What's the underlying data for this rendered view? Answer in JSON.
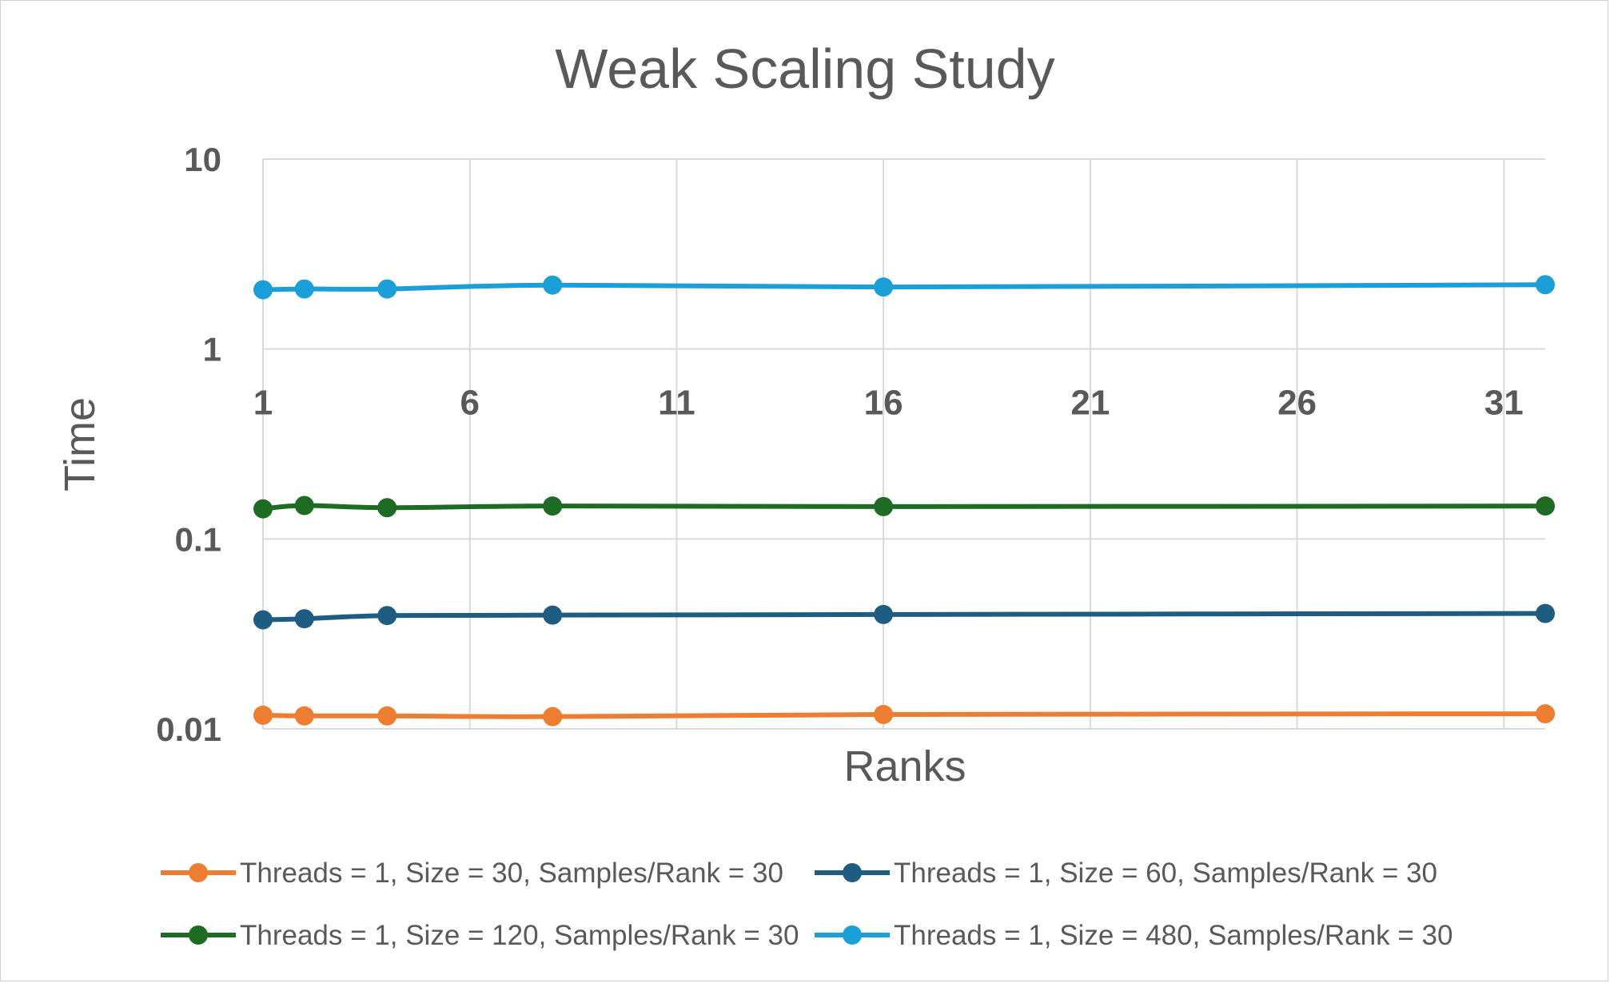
{
  "chart_data": {
    "type": "line",
    "title": "Weak Scaling Study",
    "xlabel": "Ranks",
    "ylabel": "Time",
    "y_scale": "log",
    "ylim": [
      0.01,
      10
    ],
    "xlim": [
      1,
      32
    ],
    "x_ticks": [
      1,
      6,
      11,
      16,
      21,
      26,
      31
    ],
    "y_ticks": [
      {
        "value": 10,
        "label": "10"
      },
      {
        "value": 1,
        "label": "1"
      },
      {
        "value": 0.1,
        "label": "0.1"
      },
      {
        "value": 0.01,
        "label": "0.01"
      }
    ],
    "x_axis_crosses_at": 1,
    "grid": true,
    "legend_position": "bottom",
    "x": [
      1,
      2,
      4,
      8,
      16,
      32
    ],
    "series": [
      {
        "name": "Threads = 1, Size = 30, Samples/Rank = 30",
        "color": "#ED7D31",
        "values": [
          0.0118,
          0.0117,
          0.0117,
          0.0116,
          0.0119,
          0.012
        ]
      },
      {
        "name": "Threads = 1, Size = 60, Samples/Rank = 30",
        "color": "#1F5C82",
        "values": [
          0.0375,
          0.038,
          0.0395,
          0.0397,
          0.04,
          0.0405
        ]
      },
      {
        "name": "Threads = 1, Size = 120, Samples/Rank = 30",
        "color": "#1E6B23",
        "values": [
          0.144,
          0.15,
          0.146,
          0.149,
          0.148,
          0.149
        ]
      },
      {
        "name": "Threads = 1, Size = 480, Samples/Rank = 30",
        "color": "#1B9FD8",
        "values": [
          2.05,
          2.07,
          2.07,
          2.17,
          2.12,
          2.18
        ]
      }
    ]
  }
}
